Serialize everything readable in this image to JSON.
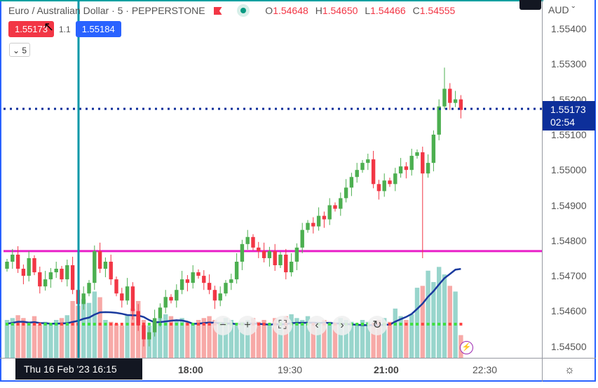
{
  "legend": {
    "symbol": "Euro / Australian Dollar · 5 · PEPPERSTONE",
    "ohlc": [
      {
        "k": "O",
        "v": "1.54648"
      },
      {
        "k": "H",
        "v": "1.54650"
      },
      {
        "k": "L",
        "v": "1.54466"
      },
      {
        "k": "C",
        "v": "1.54555"
      }
    ]
  },
  "trade": {
    "sell": "1.55173",
    "spread": "1.1",
    "buy": "1.55184"
  },
  "collapse_label": "⌄ 5",
  "price_axis": {
    "currency": "AUD ˇ",
    "ticks": [
      "1.55400",
      "1.55300",
      "1.55200",
      "1.55100",
      "1.55000",
      "1.54900",
      "1.54800",
      "1.54700",
      "1.54600",
      "1.54500"
    ],
    "last_price": "1.55173",
    "countdown": "02:54"
  },
  "time_axis": {
    "crosshair": "Thu 16 Feb '23   16:15",
    "labels": [
      "18:00",
      "19:30",
      "21:00",
      "22:30"
    ]
  },
  "nav": {
    "zoom_out": "−",
    "zoom_in": "+",
    "reset_view": "⛶",
    "scroll_left": "‹",
    "scroll_right": "›",
    "refresh": "↻"
  },
  "colors": {
    "up": "#4caf50",
    "down": "#f23645",
    "vol_up": "#98d5cc",
    "vol_down": "#f7a9a7",
    "hline": "#e91ec8",
    "last": "#0d2f9a",
    "ma": "#1a3a9e",
    "crosshair": "#0097a7"
  },
  "chart_data": {
    "type": "candlestick",
    "interval": "5m",
    "horizontal_line": 1.5477,
    "last_price": 1.55173,
    "closes": [
      1.5474,
      1.5476,
      1.5472,
      1.547,
      1.5475,
      1.5471,
      1.5467,
      1.5469,
      1.5471,
      1.5472,
      1.5469,
      1.5473,
      1.5466,
      1.5462,
      1.5465,
      1.5468,
      1.5477,
      1.5472,
      1.5474,
      1.5469,
      1.5465,
      1.5463,
      1.5467,
      1.546,
      1.5456,
      1.5452,
      1.5454,
      1.5458,
      1.5461,
      1.5464,
      1.5463,
      1.5466,
      1.5469,
      1.5468,
      1.5471,
      1.547,
      1.5468,
      1.5466,
      1.5463,
      1.5465,
      1.5468,
      1.5469,
      1.5474,
      1.5479,
      1.5481,
      1.5478,
      1.5477,
      1.5475,
      1.5477,
      1.5473,
      1.5476,
      1.5471,
      1.5474,
      1.5478,
      1.5483,
      1.5485,
      1.5484,
      1.5487,
      1.5486,
      1.549,
      1.5489,
      1.5492,
      1.5495,
      1.5498,
      1.55,
      1.5502,
      1.5503,
      1.5496,
      1.5494,
      1.5497,
      1.5496,
      1.5499,
      1.5501,
      1.55,
      1.5504,
      1.5505,
      1.5499,
      1.5502,
      1.551,
      1.5518,
      1.5523,
      1.5519,
      1.552,
      1.5517
    ],
    "volumes": [
      40,
      42,
      45,
      42,
      38,
      44,
      35,
      38,
      37,
      40,
      42,
      45,
      60,
      55,
      62,
      58,
      70,
      64,
      40,
      38,
      36,
      34,
      45,
      52,
      60,
      40,
      34,
      38,
      42,
      46,
      44,
      40,
      42,
      38,
      36,
      40,
      42,
      44,
      40,
      38,
      42,
      40,
      36,
      38,
      40,
      42,
      38,
      40,
      36,
      42,
      40,
      44,
      46,
      42,
      40,
      44,
      38,
      36,
      40,
      38,
      36,
      42,
      40,
      38,
      36,
      40,
      38,
      36,
      40,
      42,
      38,
      52,
      44,
      40,
      46,
      74,
      76,
      92,
      80,
      96,
      88,
      76,
      70,
      24
    ]
  }
}
